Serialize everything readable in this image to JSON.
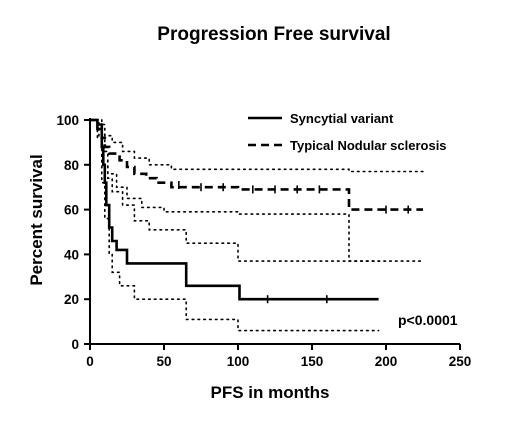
{
  "chart_data": {
    "type": "line",
    "title": "Progression Free survival",
    "xlabel": "PFS in months",
    "ylabel": "Percent survival",
    "xlim": [
      0,
      250
    ],
    "ylim": [
      0,
      100
    ],
    "xticks": [
      0,
      50,
      100,
      150,
      200,
      250
    ],
    "yticks": [
      0,
      20,
      40,
      60,
      80,
      100
    ],
    "grid": false,
    "legend_position": "top-right",
    "annotation": "p<0.0001",
    "series": [
      {
        "name": "Syncytial variant",
        "style": "solid",
        "color": "#000000",
        "points": [
          [
            0,
            100
          ],
          [
            5,
            100
          ],
          [
            5,
            98
          ],
          [
            8,
            98
          ],
          [
            8,
            88
          ],
          [
            9,
            88
          ],
          [
            9,
            80
          ],
          [
            10,
            80
          ],
          [
            10,
            72
          ],
          [
            11,
            72
          ],
          [
            11,
            62
          ],
          [
            13,
            62
          ],
          [
            13,
            52
          ],
          [
            15,
            52
          ],
          [
            15,
            46
          ],
          [
            18,
            46
          ],
          [
            18,
            42
          ],
          [
            25,
            42
          ],
          [
            25,
            36
          ],
          [
            65,
            36
          ],
          [
            65,
            26
          ],
          [
            101,
            26
          ],
          [
            101,
            20
          ],
          [
            195,
            20
          ]
        ],
        "censored": [
          [
            120,
            20
          ],
          [
            160,
            20
          ]
        ]
      },
      {
        "name": "Typical Nodular sclerosis",
        "style": "dashed",
        "color": "#000000",
        "points": [
          [
            0,
            100
          ],
          [
            5,
            100
          ],
          [
            5,
            96
          ],
          [
            8,
            96
          ],
          [
            8,
            92
          ],
          [
            10,
            92
          ],
          [
            10,
            88
          ],
          [
            13,
            88
          ],
          [
            13,
            85
          ],
          [
            20,
            85
          ],
          [
            20,
            82
          ],
          [
            25,
            82
          ],
          [
            25,
            79
          ],
          [
            30,
            79
          ],
          [
            30,
            76
          ],
          [
            38,
            76
          ],
          [
            38,
            74
          ],
          [
            45,
            74
          ],
          [
            45,
            72
          ],
          [
            55,
            72
          ],
          [
            55,
            70
          ],
          [
            100,
            70
          ],
          [
            100,
            69
          ],
          [
            175,
            69
          ],
          [
            175,
            60
          ],
          [
            225,
            60
          ]
        ],
        "censored": [
          [
            60,
            71
          ],
          [
            75,
            70
          ],
          [
            90,
            70
          ],
          [
            110,
            69
          ],
          [
            125,
            69
          ],
          [
            140,
            69
          ],
          [
            155,
            69
          ],
          [
            200,
            60
          ],
          [
            215,
            60
          ]
        ]
      }
    ],
    "confidence_bands": [
      {
        "series": "Syncytial variant",
        "bound": "upper",
        "points": [
          [
            0,
            100
          ],
          [
            8,
            100
          ],
          [
            8,
            94
          ],
          [
            10,
            94
          ],
          [
            10,
            86
          ],
          [
            12,
            86
          ],
          [
            12,
            74
          ],
          [
            15,
            74
          ],
          [
            15,
            68
          ],
          [
            22,
            68
          ],
          [
            22,
            62
          ],
          [
            30,
            62
          ],
          [
            30,
            55
          ],
          [
            40,
            55
          ],
          [
            40,
            51
          ],
          [
            65,
            51
          ],
          [
            65,
            45
          ],
          [
            100,
            45
          ],
          [
            100,
            37
          ],
          [
            195,
            37
          ]
        ]
      },
      {
        "series": "Syncytial variant",
        "bound": "lower",
        "points": [
          [
            0,
            100
          ],
          [
            6,
            100
          ],
          [
            6,
            92
          ],
          [
            8,
            92
          ],
          [
            8,
            72
          ],
          [
            10,
            72
          ],
          [
            10,
            56
          ],
          [
            13,
            56
          ],
          [
            13,
            40
          ],
          [
            15,
            40
          ],
          [
            15,
            32
          ],
          [
            20,
            32
          ],
          [
            20,
            26
          ],
          [
            30,
            26
          ],
          [
            30,
            20
          ],
          [
            65,
            20
          ],
          [
            65,
            11
          ],
          [
            100,
            11
          ],
          [
            100,
            6
          ],
          [
            195,
            6
          ]
        ]
      },
      {
        "series": "Typical Nodular sclerosis",
        "bound": "upper",
        "points": [
          [
            0,
            100
          ],
          [
            5,
            100
          ],
          [
            5,
            98
          ],
          [
            10,
            98
          ],
          [
            10,
            93
          ],
          [
            15,
            93
          ],
          [
            15,
            90
          ],
          [
            22,
            90
          ],
          [
            22,
            86
          ],
          [
            30,
            86
          ],
          [
            30,
            83
          ],
          [
            40,
            83
          ],
          [
            40,
            80
          ],
          [
            55,
            80
          ],
          [
            55,
            78
          ],
          [
            175,
            78
          ],
          [
            175,
            77
          ],
          [
            225,
            77
          ]
        ]
      },
      {
        "series": "Typical Nodular sclerosis",
        "bound": "lower",
        "points": [
          [
            0,
            100
          ],
          [
            5,
            100
          ],
          [
            5,
            92
          ],
          [
            8,
            92
          ],
          [
            8,
            82
          ],
          [
            12,
            82
          ],
          [
            12,
            76
          ],
          [
            18,
            76
          ],
          [
            18,
            70
          ],
          [
            25,
            70
          ],
          [
            25,
            65
          ],
          [
            35,
            65
          ],
          [
            35,
            61
          ],
          [
            50,
            61
          ],
          [
            50,
            59
          ],
          [
            100,
            59
          ],
          [
            100,
            58
          ],
          [
            175,
            58
          ],
          [
            175,
            37
          ],
          [
            225,
            37
          ]
        ]
      }
    ]
  }
}
